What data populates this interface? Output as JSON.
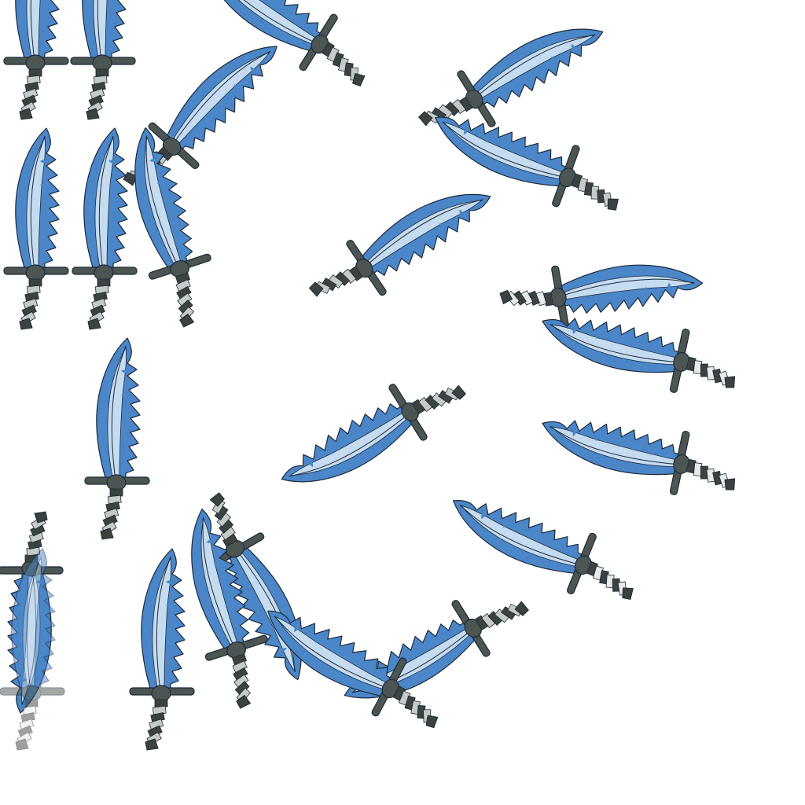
{
  "sprite_sheet": {
    "subject": "sword-sprite",
    "frame_count": 28,
    "colors": {
      "blade_dark": "#4a86c8",
      "blade_light": "#c5dbef",
      "outline": "#1d2a3a",
      "guard": "#4c5552",
      "grip_dark": "#3b423f",
      "grip_light": "#c4cbc8",
      "grip_pale": "#e6ebea"
    }
  }
}
